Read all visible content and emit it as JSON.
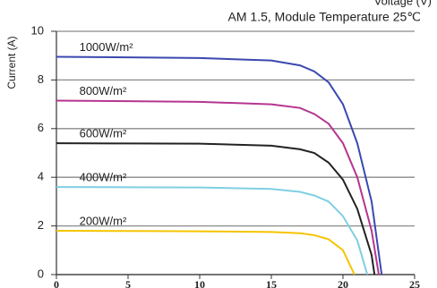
{
  "chart_data": {
    "type": "line",
    "xlabel": "Voltage (V)",
    "subtitle": "AM 1.5, Module Temperature 25℃",
    "ylabel": "Current (A)",
    "xlim": [
      0,
      25
    ],
    "xticks": [
      0,
      5,
      10,
      15,
      20,
      25
    ],
    "ylim": [
      0,
      10
    ],
    "yticks": [
      0,
      2,
      4,
      6,
      8,
      10
    ],
    "grid": true,
    "series": [
      {
        "name": "1000W/m²",
        "color": "#3b48b0",
        "x": [
          0,
          5,
          10,
          15,
          17,
          18,
          19,
          20,
          21,
          22,
          22.7
        ],
        "values": [
          8.95,
          8.93,
          8.9,
          8.8,
          8.6,
          8.35,
          7.9,
          7.0,
          5.4,
          3.0,
          0
        ]
      },
      {
        "name": "800W/m²",
        "color": "#b53590",
        "x": [
          0,
          5,
          10,
          15,
          17,
          18,
          19,
          20,
          21,
          22,
          22.5
        ],
        "values": [
          7.15,
          7.13,
          7.1,
          7.0,
          6.85,
          6.6,
          6.2,
          5.4,
          4.0,
          1.8,
          0
        ]
      },
      {
        "name": "600W/m²",
        "color": "#222222",
        "x": [
          0,
          5,
          10,
          15,
          17,
          18,
          19,
          20,
          21,
          22,
          22.2
        ],
        "values": [
          5.4,
          5.39,
          5.38,
          5.3,
          5.15,
          5.0,
          4.6,
          3.9,
          2.7,
          0.8,
          0
        ]
      },
      {
        "name": "400W/m²",
        "color": "#80cfe2",
        "x": [
          0,
          5,
          10,
          15,
          17,
          18,
          19,
          20,
          21,
          21.7
        ],
        "values": [
          3.6,
          3.59,
          3.58,
          3.52,
          3.4,
          3.25,
          3.0,
          2.4,
          1.4,
          0
        ]
      },
      {
        "name": "200W/m²",
        "color": "#f5c400",
        "x": [
          0,
          5,
          10,
          15,
          17,
          18,
          19,
          20,
          20.8
        ],
        "values": [
          1.8,
          1.79,
          1.78,
          1.75,
          1.7,
          1.62,
          1.45,
          1.0,
          0
        ]
      }
    ]
  }
}
